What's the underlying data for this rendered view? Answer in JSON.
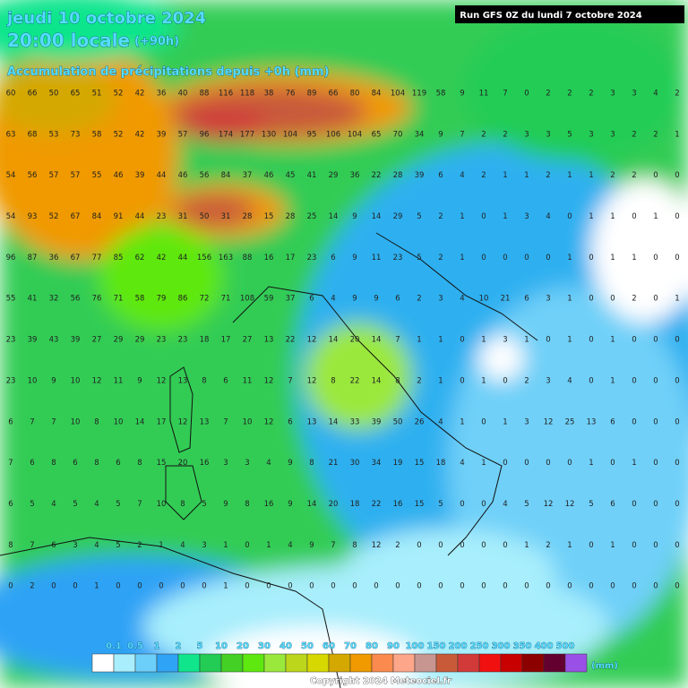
{
  "header": {
    "date": "jeudi 10 octobre 2024",
    "time": "20:00 locale",
    "lead": "(+90h)",
    "subtitle": "Accumulation de précipitations depuis +0h (mm)",
    "run": "Run GFS 0Z du lundi 7 octobre 2024"
  },
  "grid": {
    "rows": [
      [
        60,
        66,
        50,
        65,
        51,
        52,
        42,
        36,
        40,
        88,
        116,
        118,
        38,
        76,
        89,
        66,
        80,
        84,
        104,
        119,
        58,
        9,
        11,
        7,
        0,
        2,
        2,
        2,
        3,
        3,
        4,
        2
      ],
      [
        63,
        68,
        53,
        73,
        58,
        52,
        42,
        39,
        57,
        96,
        174,
        177,
        130,
        104,
        95,
        106,
        104,
        65,
        70,
        34,
        9,
        7,
        2,
        2,
        3,
        3,
        5,
        3,
        3,
        2,
        2,
        1
      ],
      [
        54,
        56,
        57,
        57,
        55,
        46,
        39,
        44,
        46,
        56,
        84,
        37,
        46,
        45,
        41,
        29,
        36,
        22,
        28,
        39,
        6,
        4,
        2,
        1,
        1,
        2,
        1,
        1,
        2,
        2,
        0,
        0
      ],
      [
        54,
        93,
        52,
        67,
        84,
        91,
        44,
        23,
        31,
        50,
        31,
        28,
        15,
        28,
        25,
        14,
        9,
        14,
        29,
        5,
        2,
        1,
        0,
        1,
        3,
        4,
        0,
        1,
        1,
        0,
        1,
        0
      ],
      [
        96,
        87,
        36,
        67,
        77,
        85,
        62,
        42,
        44,
        156,
        163,
        88,
        16,
        17,
        23,
        6,
        9,
        11,
        23,
        5,
        2,
        1,
        0,
        0,
        0,
        0,
        1,
        0,
        1,
        1,
        0,
        0
      ],
      [
        55,
        41,
        32,
        56,
        76,
        71,
        58,
        79,
        86,
        72,
        71,
        108,
        59,
        37,
        6,
        4,
        9,
        9,
        6,
        2,
        3,
        4,
        10,
        21,
        6,
        3,
        1,
        0,
        0,
        2,
        0,
        1
      ],
      [
        23,
        39,
        43,
        39,
        27,
        29,
        29,
        23,
        23,
        18,
        17,
        27,
        13,
        22,
        12,
        14,
        20,
        14,
        7,
        1,
        1,
        0,
        1,
        3,
        1,
        0,
        1,
        0,
        1,
        0,
        0,
        0
      ],
      [
        23,
        10,
        9,
        10,
        12,
        11,
        9,
        12,
        13,
        8,
        6,
        11,
        12,
        7,
        12,
        8,
        22,
        14,
        8,
        2,
        1,
        0,
        1,
        0,
        2,
        3,
        4,
        0,
        1,
        0,
        0,
        0
      ],
      [
        6,
        7,
        7,
        10,
        8,
        10,
        14,
        17,
        12,
        13,
        7,
        10,
        12,
        6,
        13,
        14,
        33,
        39,
        50,
        26,
        4,
        1,
        0,
        1,
        3,
        12,
        25,
        13,
        6,
        0,
        0,
        0
      ],
      [
        7,
        6,
        8,
        6,
        8,
        6,
        8,
        15,
        20,
        16,
        3,
        3,
        4,
        9,
        8,
        21,
        30,
        34,
        19,
        15,
        18,
        4,
        1,
        0,
        0,
        0,
        0,
        1,
        0,
        1,
        0,
        0
      ],
      [
        6,
        5,
        4,
        5,
        4,
        5,
        7,
        10,
        8,
        5,
        9,
        8,
        16,
        9,
        14,
        20,
        18,
        22,
        16,
        15,
        5,
        0,
        0,
        4,
        5,
        12,
        12,
        5,
        6,
        0,
        0,
        0
      ],
      [
        8,
        7,
        6,
        3,
        4,
        5,
        2,
        1,
        4,
        3,
        1,
        0,
        1,
        4,
        9,
        7,
        8,
        12,
        2,
        0,
        0,
        0,
        0,
        0,
        1,
        2,
        1,
        0,
        1,
        0,
        0,
        0
      ],
      [
        0,
        2,
        0,
        0,
        1,
        0,
        0,
        0,
        0,
        0,
        1,
        0,
        0,
        0,
        0,
        0,
        0,
        0,
        0,
        0,
        0,
        0,
        0,
        0,
        0,
        0,
        0,
        0,
        0,
        0,
        0,
        0
      ]
    ]
  },
  "legend": {
    "labels": [
      "0.1",
      "0.5",
      "1",
      "2",
      "5",
      "10",
      "20",
      "30",
      "40",
      "50",
      "60",
      "70",
      "80",
      "90",
      "100",
      "150",
      "200",
      "250",
      "300",
      "350",
      "400",
      "500"
    ],
    "colors": [
      "#ffffff",
      "#a8eefc",
      "#6ccffa",
      "#2fa3f5",
      "#10e58c",
      "#22cc55",
      "#44d024",
      "#5ee810",
      "#9be83c",
      "#bcd61c",
      "#d6d800",
      "#d4a800",
      "#f09a00",
      "#fa8a4e",
      "#fda68a",
      "#c89690",
      "#c85a3a",
      "#d23a3a",
      "#f01010",
      "#c80000",
      "#8c0000",
      "#640030",
      "#9a50e6"
    ],
    "unit": "(mm)"
  },
  "footer": {
    "copyright": "Copyright 2024 Meteociel.fr"
  }
}
